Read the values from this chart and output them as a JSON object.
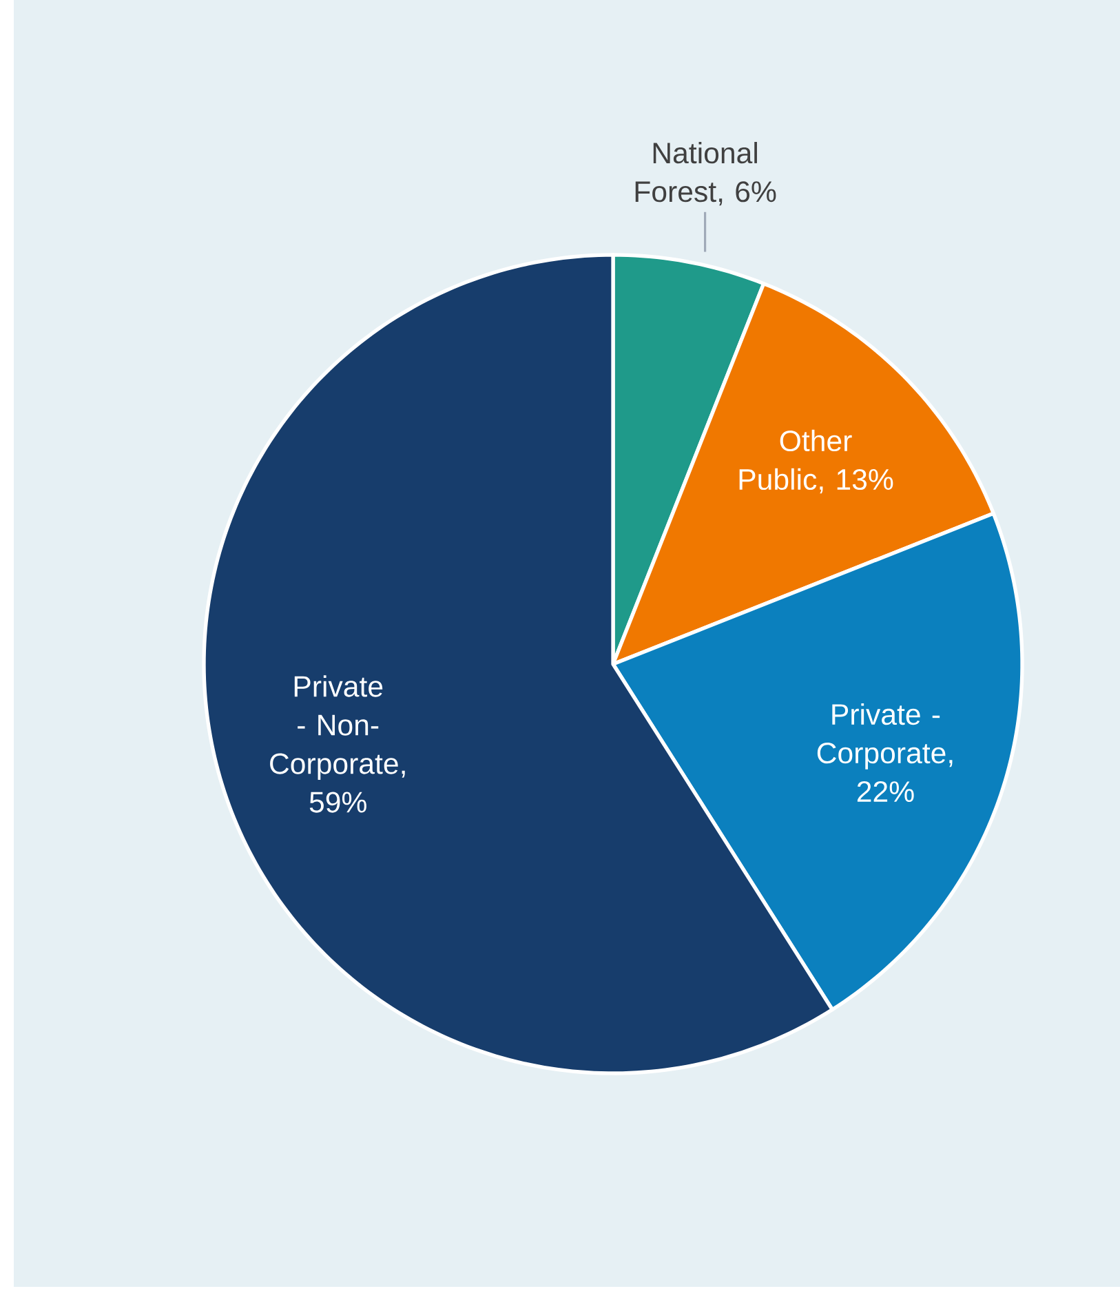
{
  "chart_data": {
    "type": "pie",
    "categories": [
      "National Forest",
      "Other Public",
      "Private - Corporate",
      "Private - Non-Corporate"
    ],
    "values": [
      6,
      13,
      22,
      59
    ],
    "value_labels": [
      ", 6%",
      ", 13%",
      ", 22%",
      ", 59%"
    ],
    "colors": [
      "#1f9a8a",
      "#f07800",
      "#0b80be",
      "#173d6c"
    ]
  }
}
